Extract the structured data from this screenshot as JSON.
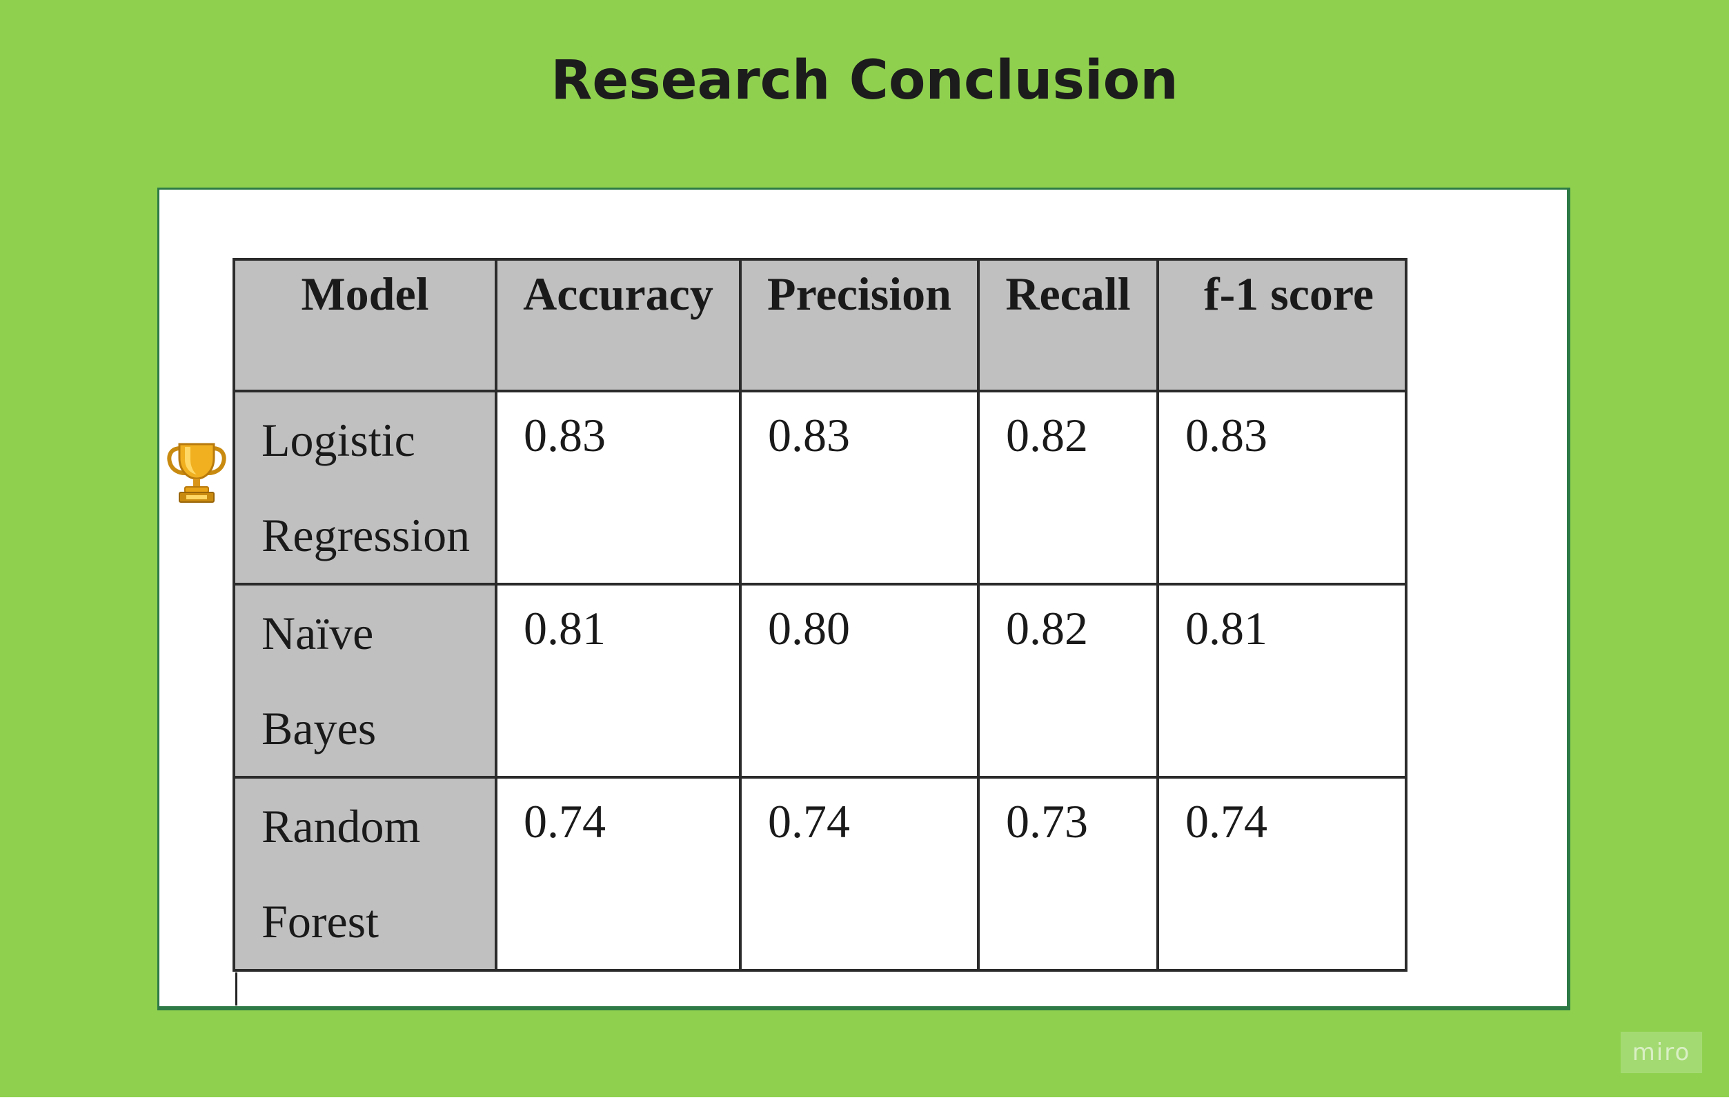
{
  "page": {
    "title": "Research Conclusion"
  },
  "table": {
    "headers": [
      "Model",
      "Accuracy",
      "Precision",
      "Recall",
      "f-1 score"
    ],
    "rows": [
      {
        "model_line1": "Logistic",
        "model_line2": "Regression",
        "accuracy": "0.83",
        "precision": "0.83",
        "recall": "0.82",
        "f1": "0.83"
      },
      {
        "model_line1": "Naïve",
        "model_line2": "Bayes",
        "accuracy": "0.81",
        "precision": "0.80",
        "recall": "0.82",
        "f1": "0.81"
      },
      {
        "model_line1": "Random",
        "model_line2": "Forest",
        "accuracy": "0.74",
        "precision": "0.74",
        "recall": "0.73",
        "f1": "0.74"
      }
    ]
  },
  "icons": {
    "trophy": "trophy-icon"
  },
  "watermark": {
    "label": "miro"
  },
  "colors": {
    "background": "#8fd14f",
    "header_fill": "#c0c0c0",
    "frame_border": "#2e7a46",
    "trophy_gold": "#e8a317"
  }
}
